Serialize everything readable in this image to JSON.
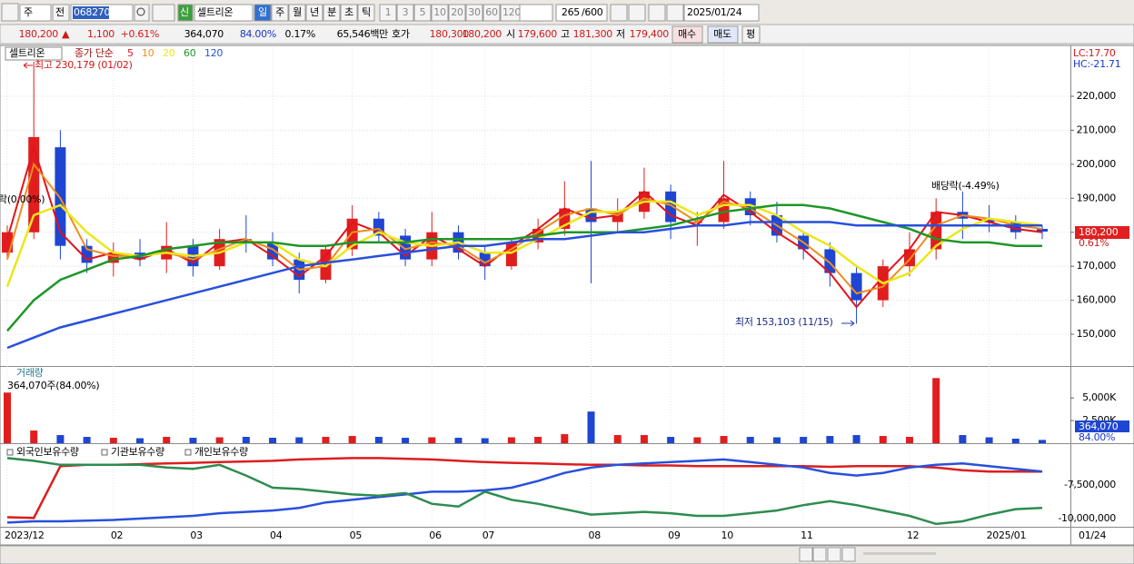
{
  "toolbar": {
    "period": "주",
    "mode": "전",
    "code": "068270",
    "badge": "신",
    "name": "셀트리온",
    "intervals": [
      "일",
      "주",
      "월",
      "년",
      "분",
      "초",
      "틱"
    ],
    "counts": [
      "1",
      "3",
      "5",
      "10",
      "20",
      "30",
      "60",
      "120"
    ],
    "shown": "265",
    "total": "/600",
    "date": "2025/01/24"
  },
  "quote": {
    "price": "180,200",
    "arrow": "▲",
    "change": "1,100",
    "change_pct": "+0.61%",
    "volume": "364,070",
    "volume_pct": "84.00%",
    "turnover": "0.17%",
    "amount": "65,546백만",
    "ask_label": "호가",
    "ask": "180,300",
    "bid": "180,200",
    "open_label": "시",
    "open": "179,600",
    "high_label": "고",
    "high": "181,300",
    "low_label": "저",
    "low": "179,400",
    "buy": "매수",
    "sell": "매도",
    "avg": "평"
  },
  "chart_data": [
    {
      "type": "candlestick",
      "title": "셀트리온",
      "subtitle": "종가 단순",
      "up_color": "#e01e1e",
      "down_color": "#1e46d2",
      "categories": [
        "2023/12",
        null,
        null,
        null,
        "02",
        null,
        null,
        "03",
        null,
        null,
        "04",
        null,
        null,
        "05",
        null,
        null,
        "06",
        null,
        "07",
        null,
        null,
        null,
        "08",
        null,
        null,
        "09",
        null,
        "10",
        null,
        null,
        "11",
        null,
        null,
        null,
        "12",
        null,
        null,
        "2025/01",
        null,
        null
      ],
      "x_end_label": "01/24",
      "open": [
        174000,
        180000,
        205000,
        176000,
        171000,
        174000,
        172000,
        176000,
        170000,
        178000,
        177000,
        172000,
        166000,
        175000,
        184000,
        179000,
        172000,
        180000,
        174000,
        170000,
        177000,
        181000,
        187000,
        183000,
        186000,
        192000,
        183000,
        183000,
        190000,
        185000,
        179000,
        175000,
        168000,
        160000,
        170000,
        175000,
        186000,
        184000,
        183000,
        181000
      ],
      "high": [
        182000,
        230179,
        210000,
        178000,
        177000,
        178000,
        183000,
        178000,
        181000,
        185000,
        180000,
        174000,
        176000,
        188000,
        186000,
        181000,
        186000,
        182000,
        176000,
        178000,
        184000,
        195000,
        201000,
        190000,
        199000,
        194000,
        186000,
        201000,
        192000,
        189000,
        180000,
        177000,
        170000,
        172000,
        180000,
        190000,
        192000,
        188000,
        185000,
        182000
      ],
      "low": [
        172000,
        178000,
        172000,
        168000,
        167000,
        170000,
        168000,
        167000,
        169000,
        174000,
        170000,
        162000,
        165000,
        173000,
        177000,
        170000,
        170000,
        172000,
        166000,
        169000,
        175000,
        179000,
        165000,
        180000,
        184000,
        178000,
        176000,
        181000,
        182000,
        177000,
        172000,
        164000,
        153103,
        158000,
        167000,
        172000,
        178000,
        180000,
        178000,
        178000
      ],
      "close": [
        180000,
        208000,
        176000,
        171000,
        174000,
        172000,
        176000,
        170000,
        178000,
        177000,
        172000,
        166000,
        175000,
        184000,
        179000,
        172000,
        180000,
        174000,
        170000,
        177000,
        181000,
        187000,
        183000,
        186000,
        192000,
        183000,
        183000,
        190000,
        185000,
        179000,
        175000,
        168000,
        160000,
        170000,
        175000,
        186000,
        184000,
        183000,
        180000,
        180200
      ],
      "series": [
        {
          "name": "5",
          "color": "#e0141e",
          "values": [
            178000,
            205000,
            180000,
            172000,
            174000,
            172000,
            175000,
            171000,
            177000,
            178000,
            173000,
            167000,
            173000,
            183000,
            180000,
            173000,
            179000,
            175000,
            170000,
            176000,
            181000,
            187000,
            184000,
            185000,
            192000,
            185000,
            182000,
            191000,
            186000,
            180000,
            175000,
            168000,
            158000,
            167000,
            175000,
            186000,
            185000,
            183000,
            181000,
            180000
          ]
        },
        {
          "name": "10",
          "color": "#f08c1e",
          "values": [
            172000,
            200000,
            190000,
            175000,
            173000,
            173000,
            174000,
            172000,
            175000,
            178000,
            175000,
            169000,
            170000,
            180000,
            181000,
            175000,
            177000,
            176000,
            171000,
            175000,
            180000,
            185000,
            187000,
            185000,
            190000,
            188000,
            183000,
            189000,
            187000,
            182000,
            177000,
            171000,
            162000,
            164000,
            172000,
            182000,
            185000,
            184000,
            182000,
            181000
          ]
        },
        {
          "name": "20",
          "color": "#ece61a",
          "values": [
            164000,
            185000,
            188000,
            180000,
            174000,
            173000,
            174000,
            173000,
            174000,
            177000,
            177000,
            172000,
            170000,
            176000,
            180000,
            177000,
            176000,
            177000,
            174000,
            174000,
            178000,
            182000,
            186000,
            186000,
            189000,
            189000,
            185000,
            188000,
            188000,
            185000,
            180000,
            176000,
            170000,
            165000,
            168000,
            176000,
            181000,
            184000,
            183000,
            182000
          ]
        },
        {
          "name": "60",
          "color": "#1e9628",
          "values": [
            151000,
            160000,
            166000,
            169000,
            172000,
            173000,
            175000,
            176000,
            177000,
            177000,
            177000,
            176000,
            176000,
            177000,
            177000,
            177000,
            178000,
            178000,
            178000,
            178000,
            179000,
            180000,
            180000,
            180000,
            181000,
            182000,
            184000,
            186000,
            187000,
            188000,
            188000,
            187000,
            185000,
            183000,
            181000,
            178000,
            177000,
            177000,
            176000,
            176000
          ]
        },
        {
          "name": "120",
          "color": "#2850dc",
          "values": [
            146000,
            149000,
            152000,
            154000,
            156000,
            158000,
            160000,
            162000,
            164000,
            166000,
            168000,
            170000,
            171000,
            172000,
            173000,
            174000,
            175000,
            176000,
            176000,
            177000,
            178000,
            178000,
            179000,
            180000,
            180000,
            181000,
            182000,
            182000,
            183000,
            183000,
            183000,
            183000,
            182000,
            182000,
            182000,
            182000,
            182000,
            182000,
            182000,
            182000
          ]
        }
      ],
      "ylim": [
        140650,
        234430
      ],
      "yticks": [
        {
          "value": 220000,
          "label": "220,000"
        },
        {
          "value": 210000,
          "label": "210,000"
        },
        {
          "value": 200000,
          "label": "200,000"
        },
        {
          "value": 190000,
          "label": "190,000"
        },
        {
          "value": 180000,
          "label": "180,000"
        },
        {
          "value": 170000,
          "label": "170,000"
        },
        {
          "value": 160000,
          "label": "160,000"
        },
        {
          "value": 150000,
          "label": "150,000"
        }
      ],
      "grid": true,
      "annotations": {
        "high": "최고 230,179 (01/02)",
        "low": "최저 153,103 (11/15)",
        "dividend": "배당락(-4.49%)",
        "left": "락(0.00%)"
      },
      "side_labels": {
        "lc": "LC:17.70",
        "hc": "HC:-21.71",
        "last": "180,200",
        "last_pct": "0.61%"
      }
    },
    {
      "type": "bar",
      "title": "거래량",
      "subtitle": "364,070주(84.00%)",
      "values": [
        5600000,
        1400000,
        900000,
        700000,
        600000,
        550000,
        700000,
        600000,
        650000,
        700000,
        600000,
        650000,
        700000,
        800000,
        700000,
        600000,
        650000,
        600000,
        550000,
        650000,
        700000,
        1000000,
        3500000,
        900000,
        900000,
        700000,
        650000,
        800000,
        700000,
        650000,
        700000,
        800000,
        900000,
        800000,
        700000,
        7200000,
        900000,
        650000,
        500000,
        364070
      ],
      "ylim": [
        0,
        8333000
      ],
      "yticks": [
        {
          "value": 5000000,
          "label": "5,000K"
        },
        {
          "value": 2500000,
          "label": "2,500K"
        }
      ],
      "side_labels": {
        "last": "364,070",
        "last_pct": "84.00%"
      }
    },
    {
      "type": "line",
      "series": [
        {
          "name": "외국인보유수량",
          "color": "#dc1e1e",
          "values": [
            -9900000,
            -9950000,
            -6100000,
            -6000000,
            -6000000,
            -5950000,
            -5900000,
            -5850000,
            -5800000,
            -5750000,
            -5700000,
            -5600000,
            -5550000,
            -5500000,
            -5500000,
            -5550000,
            -5600000,
            -5700000,
            -5800000,
            -5850000,
            -5900000,
            -5950000,
            -6000000,
            -6000000,
            -6050000,
            -6050000,
            -6100000,
            -6100000,
            -6100000,
            -6100000,
            -6100000,
            -6150000,
            -6100000,
            -6100000,
            -6100000,
            -6200000,
            -6400000,
            -6500000,
            -6500000,
            -6500000
          ]
        },
        {
          "name": "기관보유수량",
          "color": "#2850dc",
          "values": [
            -10300000,
            -10200000,
            -10200000,
            -10150000,
            -10100000,
            -10000000,
            -9900000,
            -9800000,
            -9600000,
            -9500000,
            -9400000,
            -9200000,
            -8800000,
            -8600000,
            -8400000,
            -8200000,
            -8000000,
            -8000000,
            -7900000,
            -7700000,
            -7200000,
            -6600000,
            -6200000,
            -6000000,
            -5900000,
            -5800000,
            -5700000,
            -5600000,
            -5800000,
            -6000000,
            -6200000,
            -6600000,
            -6800000,
            -6600000,
            -6200000,
            -6000000,
            -5900000,
            -6100000,
            -6300000,
            -6500000
          ]
        },
        {
          "name": "개인보유수량",
          "color": "#2d8c50",
          "values": [
            -5500000,
            -5700000,
            -6000000,
            -6000000,
            -6000000,
            -6000000,
            -6200000,
            -6300000,
            -6000000,
            -6800000,
            -7700000,
            -7800000,
            -8000000,
            -8200000,
            -8300000,
            -8100000,
            -8900000,
            -9100000,
            -8000000,
            -8600000,
            -8900000,
            -9300000,
            -9700000,
            -9600000,
            -9500000,
            -9600000,
            -9800000,
            -9800000,
            -9600000,
            -9400000,
            -9000000,
            -8700000,
            -9000000,
            -9400000,
            -9800000,
            -10400000,
            -10200000,
            -9700000,
            -9300000,
            -9200000
          ]
        }
      ],
      "ylim": [
        -10608000,
        -4527000
      ],
      "yticks": [
        {
          "value": -7500000,
          "label": "-7,500,000"
        },
        {
          "value": -10000000,
          "label": "-10,000,000"
        }
      ]
    }
  ]
}
